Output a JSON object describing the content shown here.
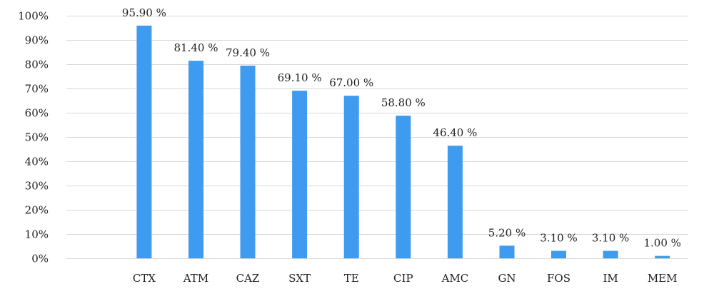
{
  "chart_data": {
    "type": "bar",
    "title": "",
    "xlabel": "",
    "ylabel": "",
    "categories": [
      "",
      "CTX",
      "ATM",
      "CAZ",
      "SXT",
      "TE",
      "CIP",
      "AMC",
      "GN",
      "FOS",
      "IM",
      "MEM"
    ],
    "values": [
      null,
      95.9,
      81.4,
      79.4,
      69.1,
      67.0,
      58.8,
      46.4,
      5.2,
      3.1,
      3.1,
      1.0
    ],
    "data_labels": [
      "",
      "95.90 %",
      "81.40 %",
      "79.40 %",
      "69.10 %",
      "67.00 %",
      "58.80 %",
      "46.40 %",
      "5.20 %",
      "3.10 %",
      "3.10 %",
      "1.00 %"
    ],
    "ylim": [
      0,
      100
    ],
    "y_ticks": [
      0,
      10,
      20,
      30,
      40,
      50,
      60,
      70,
      80,
      90,
      100
    ],
    "y_tick_labels": [
      "0%",
      "10%",
      "20%",
      "30%",
      "40%",
      "50%",
      "60%",
      "70%",
      "80%",
      "90%",
      "100%"
    ],
    "grid": true,
    "legend": "none",
    "bar_color": "#3f9bef"
  }
}
